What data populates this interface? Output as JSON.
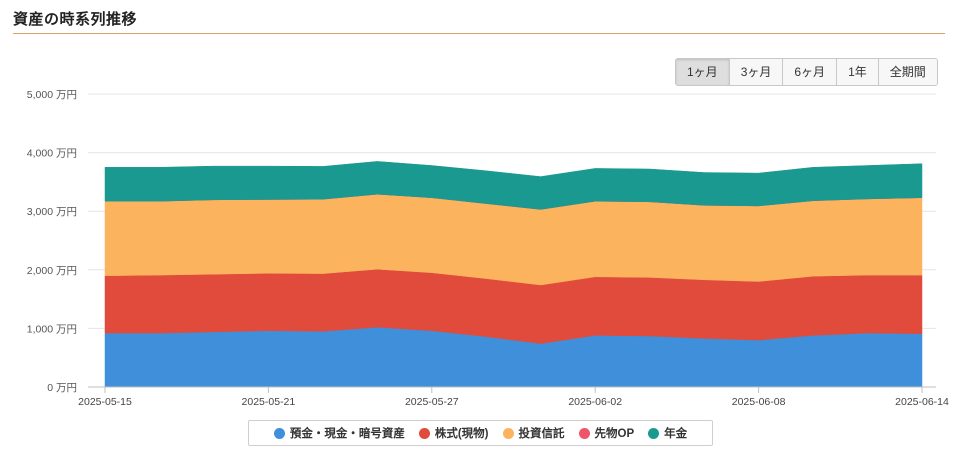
{
  "title": "資産の時系列推移",
  "range_buttons": [
    {
      "label": "1ヶ月",
      "active": true
    },
    {
      "label": "3ヶ月",
      "active": false
    },
    {
      "label": "6ヶ月",
      "active": false
    },
    {
      "label": "1年",
      "active": false
    },
    {
      "label": "全期間",
      "active": false
    }
  ],
  "chart_data": {
    "type": "area",
    "stacked": true,
    "title": "",
    "xlabel": "",
    "ylabel": "",
    "ylim": [
      0,
      5000
    ],
    "y_unit": "万円",
    "y_ticks": [
      "0 万円",
      "1,000 万円",
      "2,000 万円",
      "3,000 万円",
      "4,000 万円",
      "5,000 万円"
    ],
    "x_tick_labels": [
      "2025-05-15",
      "2025-05-21",
      "2025-05-27",
      "2025-06-02",
      "2025-06-08",
      "2025-06-14"
    ],
    "x": [
      "2025-05-15",
      "2025-05-17",
      "2025-05-19",
      "2025-05-21",
      "2025-05-23",
      "2025-05-25",
      "2025-05-27",
      "2025-05-29",
      "2025-05-31",
      "2025-06-02",
      "2025-06-04",
      "2025-06-06",
      "2025-06-08",
      "2025-06-10",
      "2025-06-12",
      "2025-06-14"
    ],
    "grid": true,
    "legend_position": "bottom",
    "series": [
      {
        "name": "預金・現金・暗号資産",
        "color": "#3f8fdb",
        "values": [
          920,
          920,
          940,
          960,
          950,
          1020,
          960,
          860,
          740,
          880,
          870,
          830,
          800,
          880,
          920,
          910
        ]
      },
      {
        "name": "株式(現物)",
        "color": "#e04b3c",
        "values": [
          980,
          990,
          985,
          980,
          985,
          990,
          990,
          990,
          1000,
          1000,
          1000,
          1000,
          1000,
          1010,
          990,
          1000
        ]
      },
      {
        "name": "投資信託",
        "color": "#fbb35e",
        "values": [
          1270,
          1260,
          1270,
          1260,
          1270,
          1280,
          1280,
          1280,
          1290,
          1290,
          1290,
          1270,
          1290,
          1290,
          1300,
          1320
        ]
      },
      {
        "name": "先物OP",
        "color": "#ee5569",
        "values": [
          0,
          0,
          0,
          0,
          0,
          0,
          0,
          0,
          0,
          0,
          0,
          0,
          0,
          0,
          0,
          0
        ]
      },
      {
        "name": "年金",
        "color": "#1a9990",
        "values": [
          580,
          580,
          575,
          570,
          560,
          560,
          550,
          560,
          560,
          560,
          560,
          560,
          560,
          570,
          570,
          580
        ]
      }
    ]
  }
}
